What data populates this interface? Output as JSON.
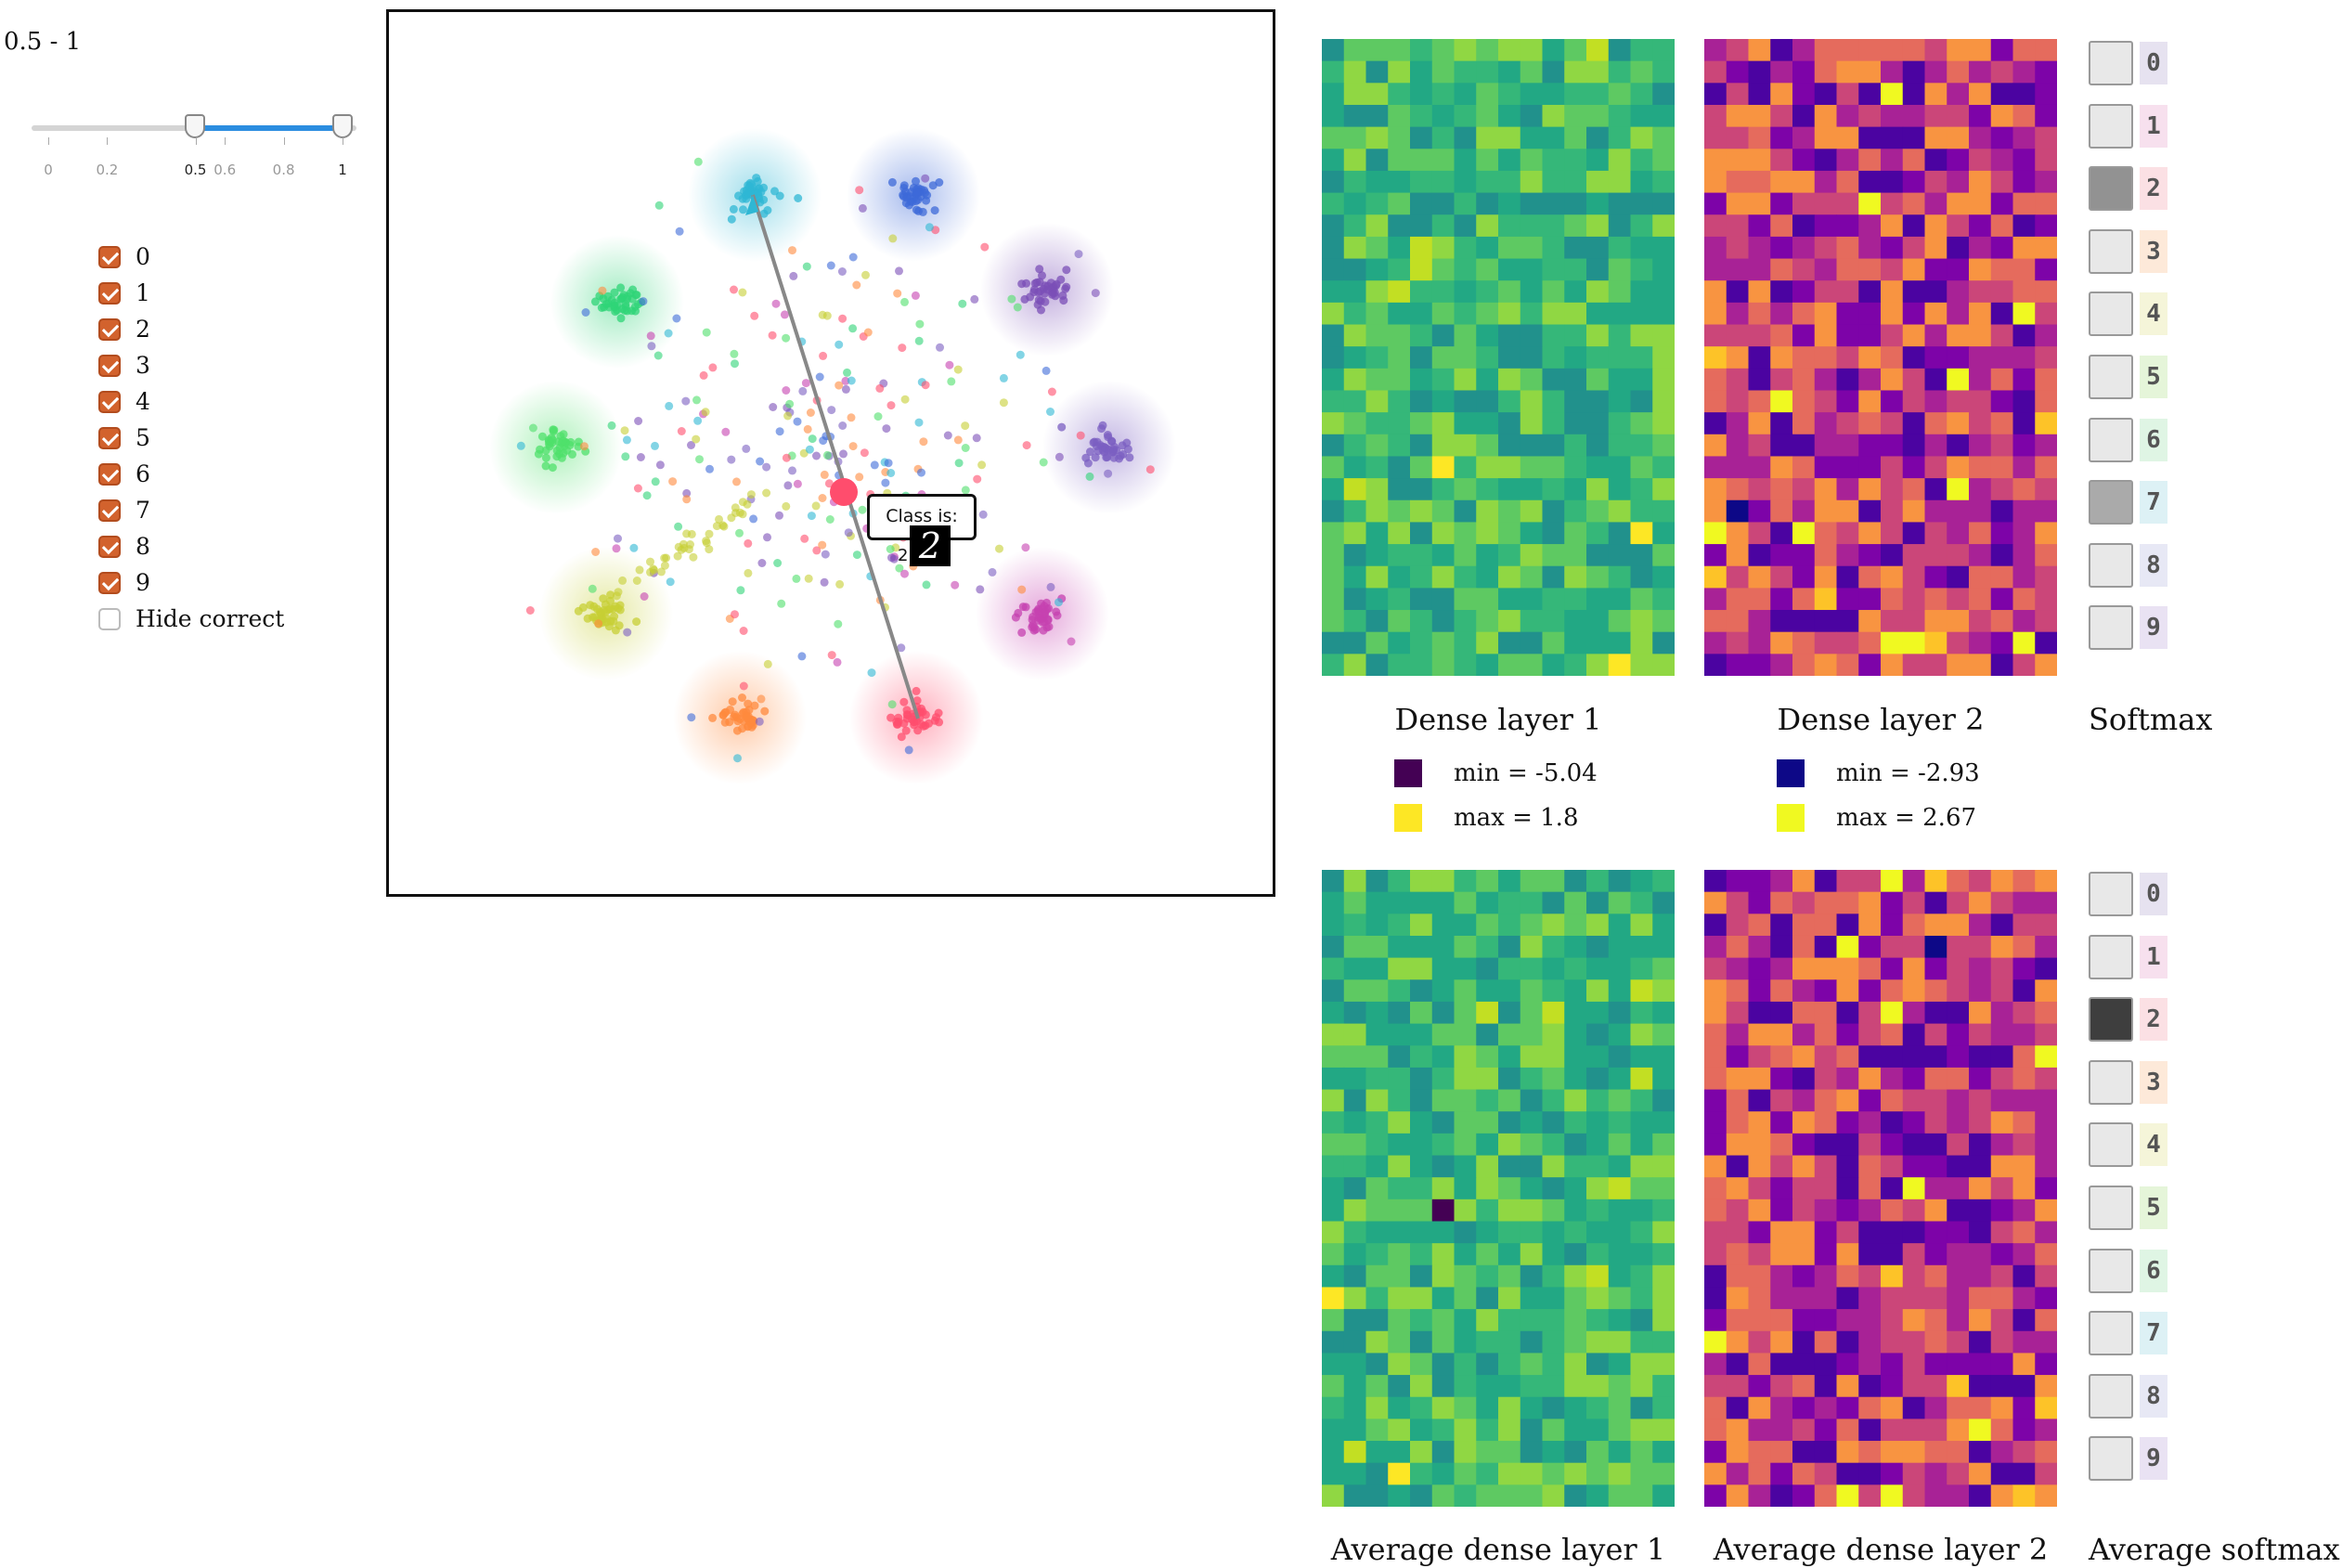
{
  "controls": {
    "range_readout": "0.5 - 1",
    "slider": {
      "min": 0,
      "max": 1,
      "low": 0.5,
      "high": 1,
      "ticks": [
        {
          "value": 0,
          "label": "0"
        },
        {
          "value": 0.2,
          "label": "0.2"
        },
        {
          "value": 0.5,
          "label": "0.5"
        },
        {
          "value": 0.6,
          "label": "0.6"
        },
        {
          "value": 0.8,
          "label": "0.8"
        },
        {
          "value": 1,
          "label": "1"
        }
      ],
      "track_color": "#d4d4d4",
      "fill_color": "#2b8de0"
    },
    "classes": [
      {
        "label": "0",
        "checked": true
      },
      {
        "label": "1",
        "checked": true
      },
      {
        "label": "2",
        "checked": true
      },
      {
        "label": "3",
        "checked": true
      },
      {
        "label": "4",
        "checked": true
      },
      {
        "label": "5",
        "checked": true
      },
      {
        "label": "6",
        "checked": true
      },
      {
        "label": "7",
        "checked": true
      },
      {
        "label": "8",
        "checked": true
      },
      {
        "label": "9",
        "checked": true
      }
    ],
    "hide_correct": {
      "label": "Hide correct",
      "checked": false
    },
    "checkbox_color": "#d2622d"
  },
  "scatter": {
    "class_colors": [
      "#2fb7d4",
      "#3e6ad8",
      "#7b4fb7",
      "#7b5fc2",
      "#c641b0",
      "#ff4d6d",
      "#ff8a3d",
      "#c7cf34",
      "#4fe06b",
      "#2fd477"
    ],
    "selected_point_color": "#ff4d6d",
    "trajectory_color": "#888888",
    "tooltip": {
      "title": "Class is:",
      "class_value": "2",
      "digit_glyph": "2"
    }
  },
  "panels": {
    "dense1": {
      "title": "Dense layer 1",
      "colormap": "viridis",
      "legend": {
        "min_label": "min = -5.04",
        "max_label": "max = 1.8",
        "min_color": "#440154",
        "max_color": "#fde725"
      }
    },
    "dense2": {
      "title": "Dense layer 2",
      "colormap": "plasma",
      "legend": {
        "min_label": "min = -2.93",
        "max_label": "max = 2.67",
        "min_color": "#0d0887",
        "max_color": "#f0f921"
      }
    },
    "softmax": {
      "title": "Softmax"
    },
    "avg_dense1": {
      "title": "Average dense layer 1",
      "colormap": "viridis"
    },
    "avg_dense2": {
      "title": "Average dense layer 2",
      "colormap": "plasma"
    },
    "avg_softmax": {
      "title": "Average softmax"
    }
  },
  "softmax": {
    "labels": [
      "0",
      "1",
      "2",
      "3",
      "4",
      "5",
      "6",
      "7",
      "8",
      "9"
    ],
    "label_colors": [
      "#e6e2f0",
      "#f7e0ee",
      "#fbe0e4",
      "#fde9d9",
      "#f5f5d9",
      "#e5f5d9",
      "#dff5e4",
      "#ddf1f5",
      "#e7e8f5",
      "#e9e2f3"
    ],
    "values": [
      0.04,
      0.04,
      0.4,
      0.04,
      0.04,
      0.04,
      0.04,
      0.3,
      0.04,
      0.04
    ],
    "average_values": [
      0.04,
      0.04,
      0.75,
      0.04,
      0.04,
      0.04,
      0.04,
      0.04,
      0.04,
      0.04
    ]
  }
}
